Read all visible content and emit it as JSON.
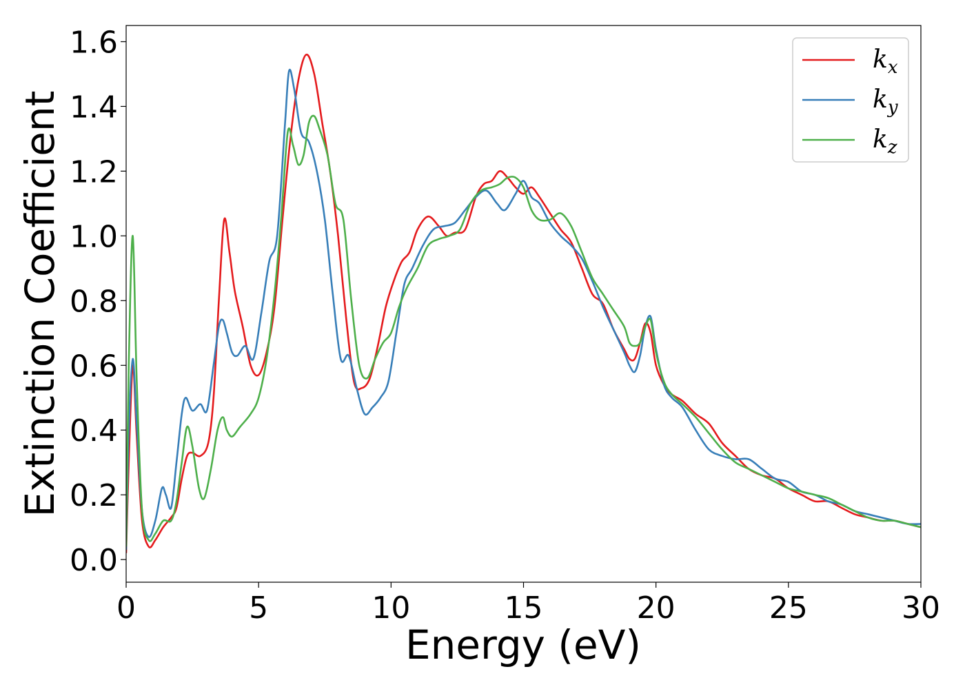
{
  "chart_data": {
    "type": "line",
    "title": "",
    "xlabel": "Energy (eV)",
    "ylabel": "Extinction Coefficient",
    "xlim": [
      0,
      30
    ],
    "ylim": [
      -0.07,
      1.65
    ],
    "xticks": [
      0,
      5,
      10,
      15,
      20,
      25,
      30
    ],
    "xtick_labels": [
      "0",
      "5",
      "10",
      "15",
      "20",
      "25",
      "30"
    ],
    "yticks": [
      0.0,
      0.2,
      0.4,
      0.6,
      0.8,
      1.0,
      1.2,
      1.4,
      1.6
    ],
    "ytick_labels": [
      "0.0",
      "0.2",
      "0.4",
      "0.6",
      "0.8",
      "1.0",
      "1.2",
      "1.4",
      "1.6"
    ],
    "grid": false,
    "legend_position": "top-right",
    "series": [
      {
        "name": "k_x",
        "legend_base": "k",
        "legend_sub": "x",
        "color": "#e41a1c",
        "x": [
          0,
          0.1,
          0.25,
          0.4,
          0.6,
          0.85,
          1.1,
          1.4,
          1.7,
          1.9,
          2.1,
          2.3,
          2.5,
          2.8,
          3.1,
          3.3,
          3.5,
          3.7,
          3.9,
          4.1,
          4.4,
          4.7,
          5.0,
          5.3,
          5.6,
          5.9,
          6.2,
          6.5,
          6.8,
          7.1,
          7.4,
          7.7,
          8.0,
          8.3,
          8.6,
          8.9,
          9.2,
          9.5,
          9.8,
          10.1,
          10.4,
          10.7,
          11.0,
          11.4,
          11.8,
          12.1,
          12.4,
          12.8,
          13.2,
          13.5,
          13.8,
          14.1,
          14.4,
          14.7,
          15.0,
          15.3,
          15.6,
          16.0,
          16.4,
          16.8,
          17.2,
          17.6,
          18.0,
          18.4,
          18.8,
          19.0,
          19.2,
          19.4,
          19.6,
          19.8,
          20.0,
          20.3,
          20.6,
          21.0,
          21.5,
          22.0,
          22.5,
          23.0,
          23.5,
          24.0,
          24.5,
          25.0,
          25.5,
          26.0,
          26.5,
          27.0,
          27.5,
          28.0,
          28.5,
          29.0,
          29.5,
          30.0
        ],
        "y": [
          0.02,
          0.3,
          0.6,
          0.38,
          0.12,
          0.04,
          0.06,
          0.1,
          0.13,
          0.16,
          0.25,
          0.32,
          0.33,
          0.32,
          0.36,
          0.5,
          0.8,
          1.05,
          0.95,
          0.83,
          0.72,
          0.6,
          0.57,
          0.64,
          0.78,
          1.05,
          1.3,
          1.48,
          1.56,
          1.5,
          1.35,
          1.2,
          1.0,
          0.75,
          0.55,
          0.53,
          0.56,
          0.66,
          0.78,
          0.86,
          0.92,
          0.95,
          1.02,
          1.06,
          1.03,
          1.0,
          1.01,
          1.02,
          1.12,
          1.16,
          1.17,
          1.2,
          1.18,
          1.15,
          1.13,
          1.15,
          1.12,
          1.07,
          1.02,
          0.98,
          0.9,
          0.82,
          0.79,
          0.71,
          0.65,
          0.62,
          0.62,
          0.67,
          0.73,
          0.7,
          0.6,
          0.54,
          0.51,
          0.49,
          0.45,
          0.42,
          0.36,
          0.32,
          0.28,
          0.26,
          0.25,
          0.22,
          0.2,
          0.18,
          0.18,
          0.16,
          0.14,
          0.13,
          0.12,
          0.12,
          0.11,
          0.1
        ]
      },
      {
        "name": "k_y",
        "legend_base": "k",
        "legend_sub": "y",
        "color": "#377eb8",
        "x": [
          0,
          0.1,
          0.25,
          0.4,
          0.6,
          0.85,
          1.1,
          1.35,
          1.5,
          1.7,
          1.9,
          2.1,
          2.25,
          2.5,
          2.8,
          3.05,
          3.3,
          3.5,
          3.65,
          3.8,
          4.0,
          4.2,
          4.5,
          4.8,
          5.1,
          5.4,
          5.7,
          6.0,
          6.15,
          6.35,
          6.6,
          6.9,
          7.2,
          7.5,
          7.8,
          8.1,
          8.4,
          8.7,
          9.0,
          9.3,
          9.6,
          9.9,
          10.2,
          10.5,
          10.8,
          11.2,
          11.6,
          12.0,
          12.4,
          12.8,
          13.2,
          13.6,
          14.0,
          14.3,
          14.7,
          15.0,
          15.3,
          15.6,
          16.0,
          16.4,
          16.8,
          17.2,
          17.6,
          18.0,
          18.4,
          18.8,
          19.0,
          19.2,
          19.4,
          19.6,
          19.8,
          20.0,
          20.3,
          20.6,
          21.0,
          21.5,
          22.0,
          22.5,
          23.0,
          23.5,
          24.0,
          24.5,
          25.0,
          25.5,
          26.0,
          26.5,
          27.0,
          27.5,
          28.0,
          28.5,
          29.0,
          29.5,
          30.0
        ],
        "y": [
          0.03,
          0.4,
          0.62,
          0.42,
          0.15,
          0.07,
          0.12,
          0.22,
          0.2,
          0.16,
          0.3,
          0.45,
          0.5,
          0.46,
          0.48,
          0.46,
          0.6,
          0.72,
          0.74,
          0.7,
          0.64,
          0.63,
          0.66,
          0.62,
          0.76,
          0.92,
          1.0,
          1.35,
          1.51,
          1.45,
          1.32,
          1.29,
          1.2,
          1.05,
          0.82,
          0.62,
          0.63,
          0.53,
          0.45,
          0.47,
          0.5,
          0.55,
          0.7,
          0.85,
          0.9,
          0.97,
          1.02,
          1.03,
          1.04,
          1.08,
          1.12,
          1.14,
          1.1,
          1.08,
          1.13,
          1.17,
          1.12,
          1.1,
          1.04,
          1.0,
          0.97,
          0.93,
          0.86,
          0.78,
          0.71,
          0.64,
          0.6,
          0.58,
          0.63,
          0.72,
          0.75,
          0.65,
          0.54,
          0.5,
          0.47,
          0.4,
          0.34,
          0.32,
          0.31,
          0.31,
          0.28,
          0.25,
          0.24,
          0.21,
          0.2,
          0.18,
          0.17,
          0.15,
          0.14,
          0.13,
          0.12,
          0.11,
          0.11
        ]
      },
      {
        "name": "k_z",
        "legend_base": "k",
        "legend_sub": "z",
        "color": "#4daf4a",
        "x": [
          0,
          0.1,
          0.25,
          0.4,
          0.6,
          0.85,
          1.1,
          1.4,
          1.7,
          1.9,
          2.1,
          2.3,
          2.5,
          2.75,
          2.95,
          3.2,
          3.45,
          3.65,
          3.8,
          4.0,
          4.3,
          4.7,
          5.0,
          5.3,
          5.6,
          5.85,
          6.1,
          6.3,
          6.5,
          6.7,
          6.9,
          7.1,
          7.3,
          7.6,
          7.9,
          8.2,
          8.5,
          8.8,
          9.1,
          9.4,
          9.7,
          10.0,
          10.3,
          10.6,
          11.0,
          11.4,
          11.8,
          12.2,
          12.6,
          13.0,
          13.4,
          13.8,
          14.1,
          14.4,
          14.7,
          15.0,
          15.3,
          15.6,
          16.0,
          16.4,
          16.8,
          17.2,
          17.6,
          18.0,
          18.4,
          18.8,
          19.0,
          19.2,
          19.4,
          19.6,
          19.8,
          20.0,
          20.3,
          20.6,
          21.0,
          21.5,
          22.0,
          22.5,
          23.0,
          23.5,
          24.0,
          24.5,
          25.0,
          25.5,
          26.0,
          26.5,
          27.0,
          27.5,
          28.0,
          28.5,
          29.0,
          29.5,
          30.0
        ],
        "y": [
          0.04,
          0.6,
          1.0,
          0.55,
          0.15,
          0.06,
          0.08,
          0.12,
          0.12,
          0.18,
          0.3,
          0.41,
          0.35,
          0.22,
          0.19,
          0.28,
          0.4,
          0.44,
          0.4,
          0.38,
          0.41,
          0.45,
          0.5,
          0.62,
          0.82,
          1.05,
          1.32,
          1.28,
          1.22,
          1.25,
          1.35,
          1.37,
          1.33,
          1.25,
          1.1,
          1.05,
          0.8,
          0.6,
          0.56,
          0.62,
          0.67,
          0.7,
          0.78,
          0.84,
          0.9,
          0.97,
          0.99,
          1.0,
          1.02,
          1.1,
          1.14,
          1.15,
          1.16,
          1.18,
          1.18,
          1.15,
          1.08,
          1.05,
          1.05,
          1.07,
          1.03,
          0.95,
          0.87,
          0.82,
          0.77,
          0.72,
          0.67,
          0.66,
          0.67,
          0.72,
          0.74,
          0.64,
          0.55,
          0.51,
          0.48,
          0.44,
          0.39,
          0.34,
          0.3,
          0.28,
          0.26,
          0.24,
          0.22,
          0.21,
          0.2,
          0.19,
          0.17,
          0.15,
          0.13,
          0.12,
          0.12,
          0.11,
          0.1
        ]
      }
    ]
  }
}
